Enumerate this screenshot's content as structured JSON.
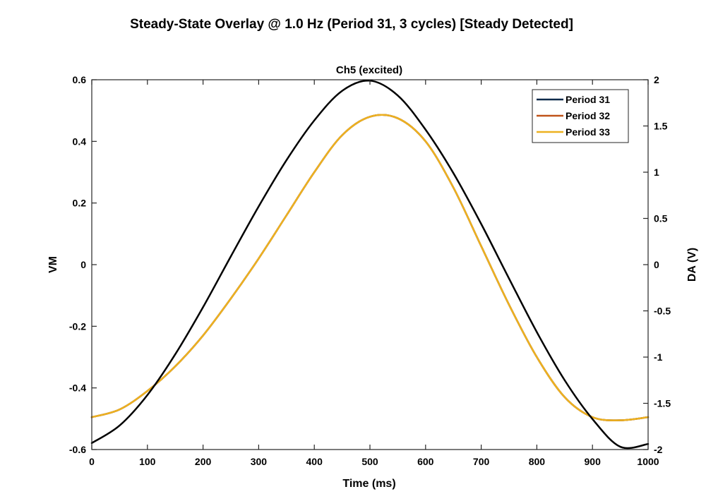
{
  "chart_data": {
    "type": "line",
    "title": "Steady-State Overlay @ 1.0 Hz (Period 31, 3 cycles) [Steady Detected]",
    "subtitle": "Ch5 (excited)",
    "xlabel": "Time (ms)",
    "ylabel_left": "VM",
    "ylabel_right": "DA (V)",
    "xlim": [
      0,
      1000
    ],
    "ylim_left": [
      -0.6,
      0.6
    ],
    "ylim_right": [
      -2,
      2
    ],
    "xticks": [
      "0",
      "100",
      "200",
      "300",
      "400",
      "500",
      "600",
      "700",
      "800",
      "900",
      "1000"
    ],
    "yticks_left": [
      "-0.6",
      "-0.4",
      "-0.2",
      "0",
      "0.2",
      "0.4",
      "0.6"
    ],
    "yticks_right": [
      "-2",
      "-1.5",
      "-1",
      "-0.5",
      "0",
      "0.5",
      "1",
      "1.5",
      "2"
    ],
    "grid": false,
    "legend_position": "top-right",
    "series": [
      {
        "name": "Period 31",
        "color": "#0b2a4a",
        "axis": "left",
        "x": [
          0,
          50,
          100,
          150,
          200,
          250,
          300,
          350,
          400,
          450,
          500,
          550,
          600,
          650,
          700,
          750,
          800,
          850,
          900,
          950,
          1000
        ],
        "y": [
          -0.495,
          -0.47,
          -0.41,
          -0.33,
          -0.23,
          -0.11,
          0.02,
          0.16,
          0.3,
          0.42,
          0.48,
          0.475,
          0.4,
          0.25,
          0.06,
          -0.13,
          -0.3,
          -0.43,
          -0.495,
          -0.505,
          -0.495
        ]
      },
      {
        "name": "Period 32",
        "color": "#c0541a",
        "axis": "left",
        "x": [
          0,
          50,
          100,
          150,
          200,
          250,
          300,
          350,
          400,
          450,
          500,
          550,
          600,
          650,
          700,
          750,
          800,
          850,
          900,
          950,
          1000
        ],
        "y": [
          -0.495,
          -0.47,
          -0.41,
          -0.33,
          -0.23,
          -0.11,
          0.02,
          0.16,
          0.3,
          0.42,
          0.48,
          0.475,
          0.4,
          0.25,
          0.06,
          -0.13,
          -0.3,
          -0.43,
          -0.495,
          -0.505,
          -0.495
        ]
      },
      {
        "name": "Period 33",
        "color": "#edb120",
        "axis": "left",
        "x": [
          0,
          50,
          100,
          150,
          200,
          250,
          300,
          350,
          400,
          450,
          500,
          550,
          600,
          650,
          700,
          750,
          800,
          850,
          900,
          950,
          1000
        ],
        "y": [
          -0.495,
          -0.47,
          -0.41,
          -0.33,
          -0.23,
          -0.11,
          0.02,
          0.16,
          0.3,
          0.42,
          0.48,
          0.475,
          0.4,
          0.25,
          0.06,
          -0.13,
          -0.3,
          -0.43,
          -0.495,
          -0.505,
          -0.495
        ]
      },
      {
        "name": "",
        "color": "#000000",
        "axis": "right",
        "x": [
          0,
          50,
          100,
          150,
          200,
          250,
          300,
          350,
          400,
          450,
          500,
          550,
          600,
          650,
          700,
          750,
          800,
          850,
          900,
          950,
          1000
        ],
        "y": [
          -1.93,
          -1.74,
          -1.41,
          -0.97,
          -0.46,
          0.09,
          0.63,
          1.13,
          1.56,
          1.88,
          1.99,
          1.83,
          1.46,
          0.99,
          0.44,
          -0.15,
          -0.73,
          -1.25,
          -1.67,
          -1.97,
          -1.94
        ]
      }
    ]
  }
}
